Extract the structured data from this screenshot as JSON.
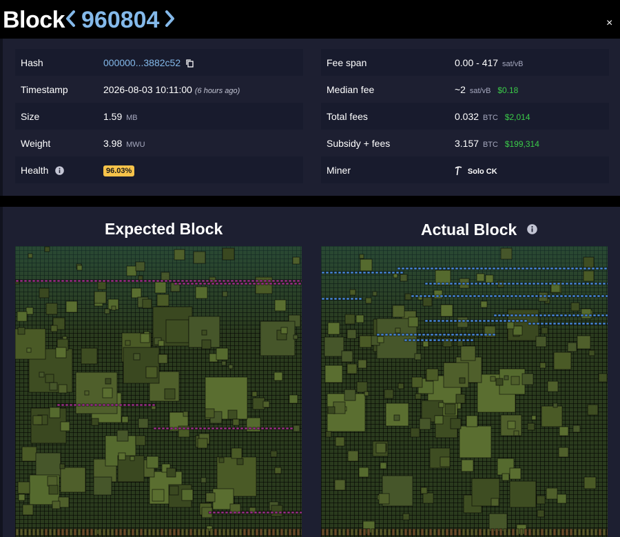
{
  "header": {
    "title": "Block",
    "height": "960804",
    "prev_icon": "chevron-left-icon",
    "next_icon": "chevron-right-icon",
    "close": "×"
  },
  "details_left": [
    {
      "key": "Hash",
      "value": "000000...3882c52",
      "icon": "copy-icon"
    },
    {
      "key": "Timestamp",
      "value": "2026-08-03 10:11:00",
      "ago": "(6 hours ago)"
    },
    {
      "key": "Size",
      "value": "1.59",
      "unit": "MB"
    },
    {
      "key": "Weight",
      "value": "3.98",
      "unit": "MWU"
    },
    {
      "key": "Health",
      "value": "96.03%",
      "icon": "info-icon"
    }
  ],
  "details_right": [
    {
      "key": "Fee span",
      "value": "0.00 - 417",
      "unit": "sat/vB"
    },
    {
      "key": "Median fee",
      "value": "~2",
      "unit": "sat/vB",
      "fiat": "$0.18"
    },
    {
      "key": "Total fees",
      "value": "0.032",
      "unit": "BTC",
      "fiat": "$2,014"
    },
    {
      "key": "Subsidy + fees",
      "value": "3.157",
      "unit": "BTC",
      "fiat": "$199,314"
    },
    {
      "key": "Miner",
      "value": "Solo CK",
      "icon": "miner-tool-icon"
    }
  ],
  "compare": {
    "expected_title": "Expected Block",
    "actual_title": "Actual Block",
    "actual_info_icon": "info-icon"
  },
  "colors": {
    "accent_link": "#84b9ea",
    "fiat_green": "#3bcc49",
    "health_badge": "#f7c34a",
    "tx_green": "#4a5a26",
    "tx_added_magenta": "#a1348c",
    "tx_blue": "#4d8fe0"
  }
}
